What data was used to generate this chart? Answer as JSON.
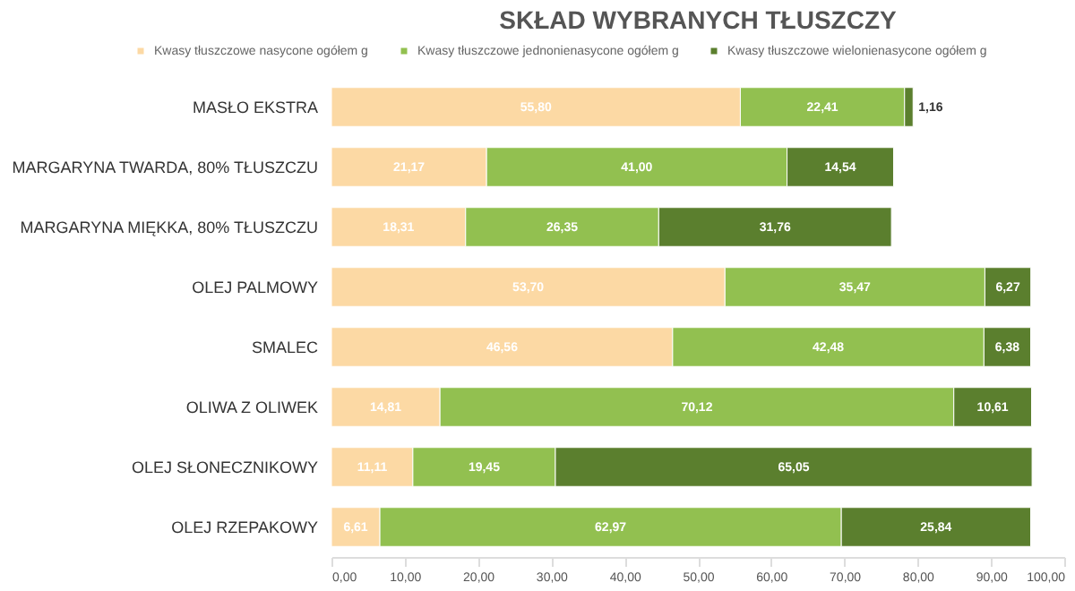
{
  "chart_data": {
    "type": "bar",
    "orientation": "horizontal",
    "stacked": true,
    "title": "SKŁAD WYBRANYCH TŁUSZCZY",
    "categories": [
      "MASŁO EKSTRA",
      "MARGARYNA TWARDA, 80% TŁUSZCZU",
      "MARGARYNA MIĘKKA, 80% TŁUSZCZU",
      "OLEJ PALMOWY",
      "SMALEC",
      "OLIWA Z OLIWEK",
      "OLEJ SŁONECZNIKOWY",
      "OLEJ RZEPAKOWY"
    ],
    "series": [
      {
        "name": "Kwasy tłuszczowe nasycone ogółem g",
        "color": "#fcd9a4",
        "values": [
          55.8,
          21.17,
          18.31,
          53.7,
          46.56,
          14.81,
          11.11,
          6.61
        ],
        "value_labels": [
          "55,80",
          "21,17",
          "18,31",
          "53,70",
          "46,56",
          "14,81",
          "11,11",
          "6,61"
        ]
      },
      {
        "name": "Kwasy tłuszczowe jednonienasycone ogółem g",
        "color": "#92c050",
        "values": [
          22.41,
          41.0,
          26.35,
          35.47,
          42.48,
          70.12,
          19.45,
          62.97
        ],
        "value_labels": [
          "22,41",
          "41,00",
          "26,35",
          "35,47",
          "42,48",
          "70,12",
          "19,45",
          "62,97"
        ]
      },
      {
        "name": "Kwasy tłuszczowe wielonienasycone ogółem g",
        "color": "#5b7f2e",
        "values": [
          1.16,
          14.54,
          31.76,
          6.27,
          6.38,
          10.61,
          65.05,
          25.84
        ],
        "value_labels": [
          "1,16",
          "14,54",
          "31,76",
          "6,27",
          "6,38",
          "10,61",
          "65,05",
          "25,84"
        ]
      }
    ],
    "xlim": [
      0,
      100
    ],
    "xticks": [
      {
        "value": 0,
        "label": "0,00"
      },
      {
        "value": 10,
        "label": "10,00"
      },
      {
        "value": 20,
        "label": "20,00"
      },
      {
        "value": 30,
        "label": "30,00"
      },
      {
        "value": 40,
        "label": "40,00"
      },
      {
        "value": 50,
        "label": "50,00"
      },
      {
        "value": 60,
        "label": "60,00"
      },
      {
        "value": 70,
        "label": "70,00"
      },
      {
        "value": 80,
        "label": "80,00"
      },
      {
        "value": 90,
        "label": "90,00"
      },
      {
        "value": 100,
        "label": "100,00"
      }
    ],
    "legend": "top",
    "grid": false
  }
}
